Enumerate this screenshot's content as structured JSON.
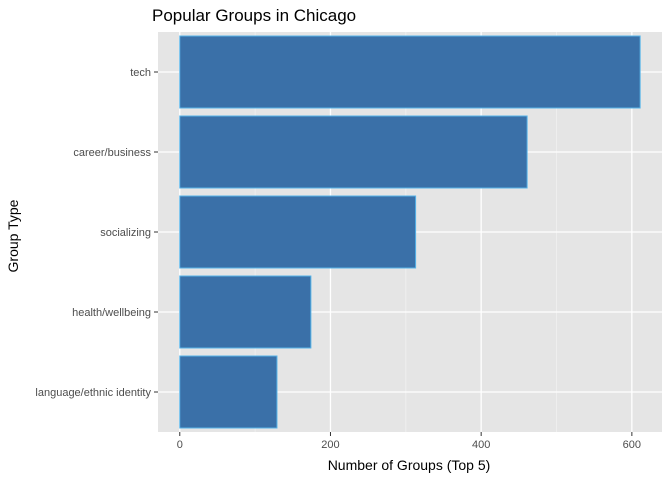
{
  "chart_data": {
    "type": "bar",
    "orientation": "horizontal",
    "title": "Popular Groups in Chicago",
    "xlabel": "Number of Groups (Top 5)",
    "ylabel": "Group Type",
    "categories": [
      "tech",
      "career/business",
      "socializing",
      "health/wellbeing",
      "language/ethnic identity"
    ],
    "values": [
      611,
      461,
      313,
      174,
      129
    ],
    "xlim": [
      -28.9,
      640
    ],
    "xticks": [
      0,
      200,
      400,
      600
    ],
    "xtick_labels": [
      "0",
      "200",
      "400",
      "600"
    ],
    "grid": true,
    "legend": "none",
    "colors": {
      "bar_fill": "#3a70a8",
      "bar_outline": "#56b4e9",
      "panel_bg": "#e5e5e5",
      "grid": "#ffffff"
    }
  }
}
